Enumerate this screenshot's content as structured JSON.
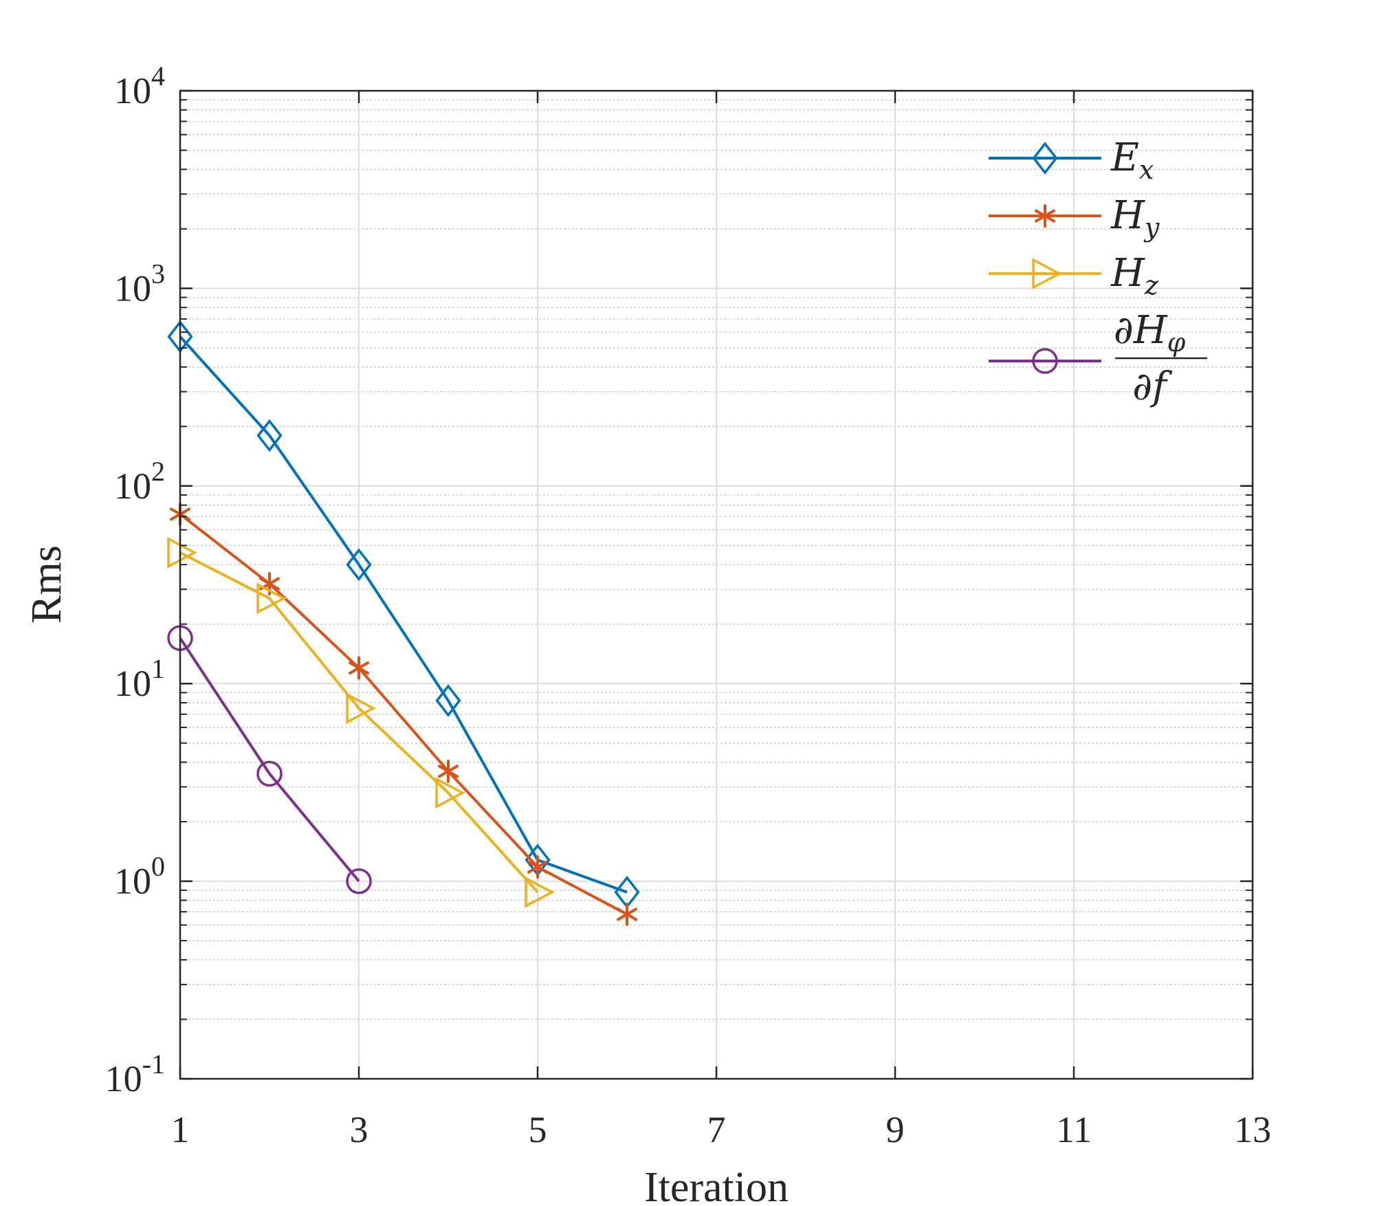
{
  "chart_data": {
    "type": "line",
    "title": "",
    "xlabel": "Iteration",
    "ylabel": "Rms",
    "xlim": [
      1,
      13
    ],
    "ylim": [
      0.1,
      10000
    ],
    "yscale": "log",
    "grid": true,
    "legend_position": "top-right",
    "x_ticks": [
      1,
      3,
      5,
      7,
      9,
      11,
      13
    ],
    "y_ticks": [
      {
        "base": "10",
        "exp": "-1",
        "value": 0.1
      },
      {
        "base": "10",
        "exp": "0",
        "value": 1
      },
      {
        "base": "10",
        "exp": "1",
        "value": 10
      },
      {
        "base": "10",
        "exp": "2",
        "value": 100
      },
      {
        "base": "10",
        "exp": "3",
        "value": 1000
      },
      {
        "base": "10",
        "exp": "4",
        "value": 10000
      }
    ],
    "series": [
      {
        "name": "E",
        "sub": "x",
        "color": "#0072BD",
        "marker": "diamond",
        "x": [
          1,
          2,
          3,
          4,
          5,
          6
        ],
        "values": [
          570,
          180,
          40,
          8.2,
          1.28,
          0.88
        ]
      },
      {
        "name": "H",
        "sub": "y",
        "color": "#D95319",
        "marker": "asterisk",
        "x": [
          1,
          2,
          3,
          4,
          5,
          6
        ],
        "values": [
          72,
          32,
          12,
          3.6,
          1.18,
          0.68
        ]
      },
      {
        "name": "H",
        "sub": "z",
        "color": "#EDB120",
        "marker": "triangle-right",
        "x": [
          1,
          2,
          3,
          4,
          5
        ],
        "values": [
          46,
          27,
          7.5,
          2.8,
          0.88
        ]
      },
      {
        "name": "∂H",
        "sub": "φ",
        "denominator": "∂f",
        "color": "#7E2F8E",
        "marker": "circle",
        "x": [
          1,
          2,
          3
        ],
        "values": [
          17,
          3.5,
          1.0
        ]
      }
    ]
  }
}
